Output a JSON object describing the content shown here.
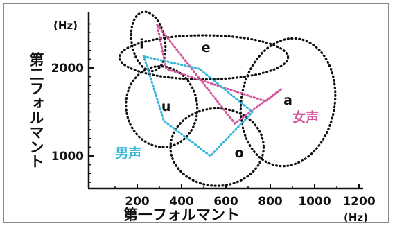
{
  "chart_data": {
    "type": "scatter",
    "x_axis": {
      "title": "第一フォルマント",
      "unit": "(Hz)",
      "ticks": [
        200,
        400,
        600,
        800,
        1000,
        1200
      ],
      "tick_labels": [
        "200",
        "400",
        "600",
        "800",
        "1000",
        "1200"
      ],
      "range": [
        0,
        1200
      ]
    },
    "y_axis": {
      "title": "第二フォルマント",
      "unit": "(Hz)",
      "ticks": [
        1000,
        2000
      ],
      "tick_labels": [
        "1000",
        "2000"
      ],
      "range": [
        600,
        2600
      ]
    },
    "vowel_regions": [
      {
        "label": "i",
        "center": [
          250,
          2300
        ],
        "rx": 75,
        "ry": 340,
        "angle": 10
      },
      {
        "label": "e",
        "center": [
          500,
          2120
        ],
        "rx": 380,
        "ry": 250,
        "angle": 0
      },
      {
        "label": "a",
        "center": [
          880,
          1610
        ],
        "rx": 290,
        "ry": 530,
        "angle": 80
      },
      {
        "label": "u",
        "center": [
          310,
          1560
        ],
        "rx": 160,
        "ry": 460,
        "angle": 10
      },
      {
        "label": "o",
        "center": [
          560,
          1100
        ],
        "rx": 210,
        "ry": 440,
        "angle": 0
      }
    ],
    "vowel_labels": [
      {
        "text": "i",
        "x": 220,
        "y": 2270
      },
      {
        "text": "e",
        "x": 510,
        "y": 2230
      },
      {
        "text": "a",
        "x": 880,
        "y": 1630
      },
      {
        "text": "u",
        "x": 330,
        "y": 1560
      },
      {
        "text": "o",
        "x": 660,
        "y": 1030
      }
    ],
    "series": [
      {
        "name": "女声",
        "color": "#d4569a",
        "points": [
          {
            "vowel": "i",
            "x": 290,
            "y": 2490
          },
          {
            "vowel": "e",
            "x": 330,
            "y": 1990
          },
          {
            "vowel": "a",
            "x": 640,
            "y": 1370
          },
          {
            "vowel": "o",
            "x": 780,
            "y": 1620
          },
          {
            "vowel": "u",
            "x": 850,
            "y": 1760
          }
        ],
        "polygon_order": [
          "i",
          "a",
          "u",
          "o",
          "e"
        ],
        "label_pos": {
          "x": 960,
          "y": 1390
        }
      },
      {
        "name": "男声",
        "color": "#35b6dc",
        "points": [
          {
            "vowel": "i",
            "x": 230,
            "y": 2130
          },
          {
            "vowel": "e",
            "x": 480,
            "y": 1990
          },
          {
            "vowel": "a",
            "x": 720,
            "y": 1500
          },
          {
            "vowel": "o",
            "x": 530,
            "y": 1000
          },
          {
            "vowel": "u",
            "x": 320,
            "y": 1400
          }
        ],
        "polygon_order": [
          "i",
          "e",
          "a",
          "o",
          "u"
        ],
        "label_pos": {
          "x": 160,
          "y": 980
        }
      }
    ]
  }
}
